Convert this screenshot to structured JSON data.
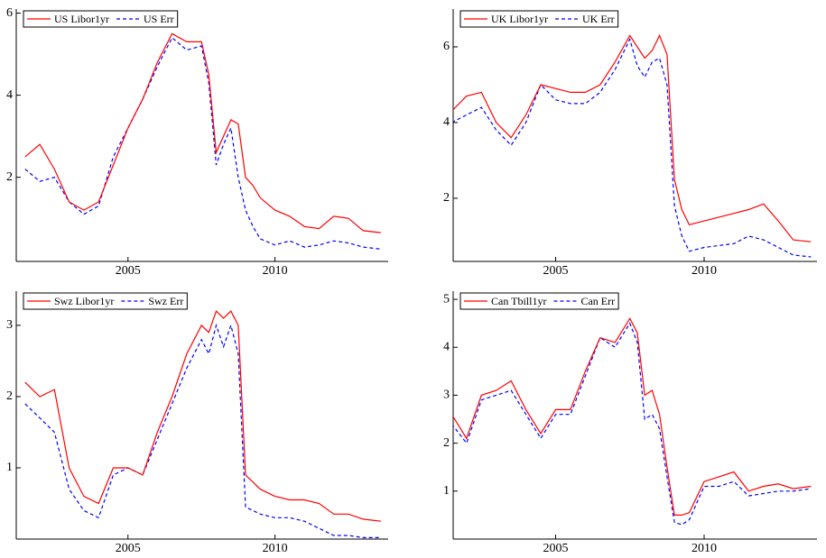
{
  "chart_data": [
    {
      "type": "line",
      "xlim": [
        2001.2,
        2013.85
      ],
      "xticks": [
        2005,
        2010
      ],
      "ylim": [
        -0.05,
        6.1
      ],
      "yticks": [
        2,
        4,
        6
      ],
      "x": [
        2001.5,
        2002,
        2002.5,
        2003,
        2003.5,
        2004,
        2004.5,
        2005,
        2005.5,
        2006,
        2006.5,
        2007,
        2007.5,
        2007.75,
        2008,
        2008.25,
        2008.5,
        2008.75,
        2009,
        2009.25,
        2009.5,
        2010,
        2010.5,
        2011,
        2011.5,
        2012,
        2012.5,
        2013,
        2013.6
      ],
      "series": [
        {
          "name": "US Libor1yr",
          "color": "#ff0000",
          "values": [
            2.5,
            2.8,
            2.2,
            1.4,
            1.2,
            1.4,
            2.3,
            3.2,
            3.9,
            4.8,
            5.5,
            5.3,
            5.3,
            4.5,
            2.6,
            3.0,
            3.4,
            3.3,
            2.0,
            1.8,
            1.5,
            1.2,
            1.05,
            0.8,
            0.75,
            1.05,
            1.0,
            0.7,
            0.65
          ]
        },
        {
          "name": "US Err",
          "color": "#0000ff",
          "values": [
            2.2,
            1.9,
            2.0,
            1.4,
            1.1,
            1.3,
            2.5,
            3.2,
            3.9,
            4.7,
            5.4,
            5.1,
            5.2,
            4.3,
            2.3,
            2.8,
            3.2,
            2.0,
            1.2,
            0.8,
            0.5,
            0.35,
            0.45,
            0.3,
            0.35,
            0.45,
            0.4,
            0.3,
            0.25
          ]
        }
      ]
    },
    {
      "type": "line",
      "xlim": [
        2001.55,
        2013.8
      ],
      "xticks": [
        2005,
        2010
      ],
      "ylim": [
        0.33,
        7.0
      ],
      "yticks": [
        2,
        4,
        6
      ],
      "x": [
        2001.5,
        2002,
        2002.5,
        2003,
        2003.5,
        2004,
        2004.5,
        2005,
        2005.5,
        2006,
        2006.5,
        2007,
        2007.5,
        2007.75,
        2008,
        2008.25,
        2008.5,
        2008.75,
        2009,
        2009.25,
        2009.5,
        2010,
        2010.5,
        2011,
        2011.5,
        2012,
        2012.5,
        2013,
        2013.6
      ],
      "series": [
        {
          "name": "UK Libor1yr",
          "color": "#ff0000",
          "values": [
            4.3,
            4.7,
            4.8,
            4.0,
            3.6,
            4.2,
            5.0,
            4.9,
            4.8,
            4.8,
            5.0,
            5.6,
            6.3,
            6.0,
            5.7,
            5.9,
            6.3,
            5.8,
            2.5,
            1.7,
            1.3,
            1.4,
            1.5,
            1.6,
            1.7,
            1.85,
            1.4,
            0.9,
            0.85
          ]
        },
        {
          "name": "UK Err",
          "color": "#0000ff",
          "values": [
            4.0,
            4.2,
            4.4,
            3.8,
            3.4,
            4.0,
            5.0,
            4.6,
            4.5,
            4.5,
            4.8,
            5.4,
            6.2,
            5.5,
            5.2,
            5.6,
            5.7,
            5.0,
            1.8,
            1.0,
            0.6,
            0.7,
            0.75,
            0.8,
            1.0,
            0.9,
            0.7,
            0.5,
            0.45
          ]
        }
      ]
    },
    {
      "type": "line",
      "xlim": [
        2001.2,
        2013.85
      ],
      "xticks": [
        2005,
        2010
      ],
      "ylim": [
        0,
        3.48
      ],
      "yticks": [
        1,
        2,
        3
      ],
      "x": [
        2001.5,
        2002,
        2002.5,
        2003,
        2003.5,
        2004,
        2004.5,
        2005,
        2005.5,
        2006,
        2006.5,
        2007,
        2007.5,
        2007.75,
        2008,
        2008.25,
        2008.5,
        2008.75,
        2009,
        2009.25,
        2009.5,
        2010,
        2010.5,
        2011,
        2011.5,
        2012,
        2012.5,
        2013,
        2013.6
      ],
      "series": [
        {
          "name": "Swz Libor1yr",
          "color": "#ff0000",
          "values": [
            2.2,
            2.0,
            2.1,
            1.0,
            0.6,
            0.5,
            1.0,
            1.0,
            0.9,
            1.5,
            2.0,
            2.6,
            3.0,
            2.9,
            3.2,
            3.1,
            3.2,
            3.0,
            0.9,
            0.8,
            0.7,
            0.6,
            0.55,
            0.55,
            0.5,
            0.35,
            0.35,
            0.28,
            0.25
          ]
        },
        {
          "name": "Swz Err",
          "color": "#0000ff",
          "values": [
            1.9,
            1.7,
            1.5,
            0.7,
            0.4,
            0.3,
            0.9,
            1.0,
            0.9,
            1.4,
            1.9,
            2.4,
            2.8,
            2.6,
            3.0,
            2.7,
            3.0,
            2.6,
            0.45,
            0.4,
            0.35,
            0.3,
            0.3,
            0.25,
            0.15,
            0.05,
            0.05,
            0.02,
            0.02
          ]
        }
      ]
    },
    {
      "type": "line",
      "xlim": [
        2001.55,
        2013.8
      ],
      "xticks": [
        2005,
        2010
      ],
      "ylim": [
        0,
        5.17
      ],
      "yticks": [
        1,
        2,
        3,
        4,
        5
      ],
      "x": [
        2001.5,
        2002,
        2002.5,
        2003,
        2003.5,
        2004,
        2004.5,
        2005,
        2005.5,
        2006,
        2006.5,
        2007,
        2007.5,
        2007.75,
        2008,
        2008.25,
        2008.5,
        2008.75,
        2009,
        2009.25,
        2009.5,
        2010,
        2010.5,
        2011,
        2011.5,
        2012,
        2012.5,
        2013,
        2013.6
      ],
      "series": [
        {
          "name": "Can Tbill1yr",
          "color": "#ff0000",
          "values": [
            2.6,
            2.1,
            3.0,
            3.1,
            3.3,
            2.7,
            2.2,
            2.7,
            2.7,
            3.5,
            4.2,
            4.1,
            4.6,
            4.3,
            3.0,
            3.1,
            2.6,
            1.5,
            0.5,
            0.5,
            0.55,
            1.2,
            1.3,
            1.4,
            1.0,
            1.1,
            1.15,
            1.05,
            1.1
          ]
        },
        {
          "name": "Can Err",
          "color": "#0000ff",
          "values": [
            2.4,
            2.0,
            2.9,
            3.0,
            3.1,
            2.6,
            2.1,
            2.6,
            2.6,
            3.4,
            4.2,
            4.0,
            4.5,
            4.1,
            2.5,
            2.6,
            2.3,
            1.3,
            0.35,
            0.3,
            0.4,
            1.1,
            1.1,
            1.2,
            0.9,
            0.95,
            1.0,
            1.0,
            1.05
          ]
        }
      ]
    }
  ]
}
